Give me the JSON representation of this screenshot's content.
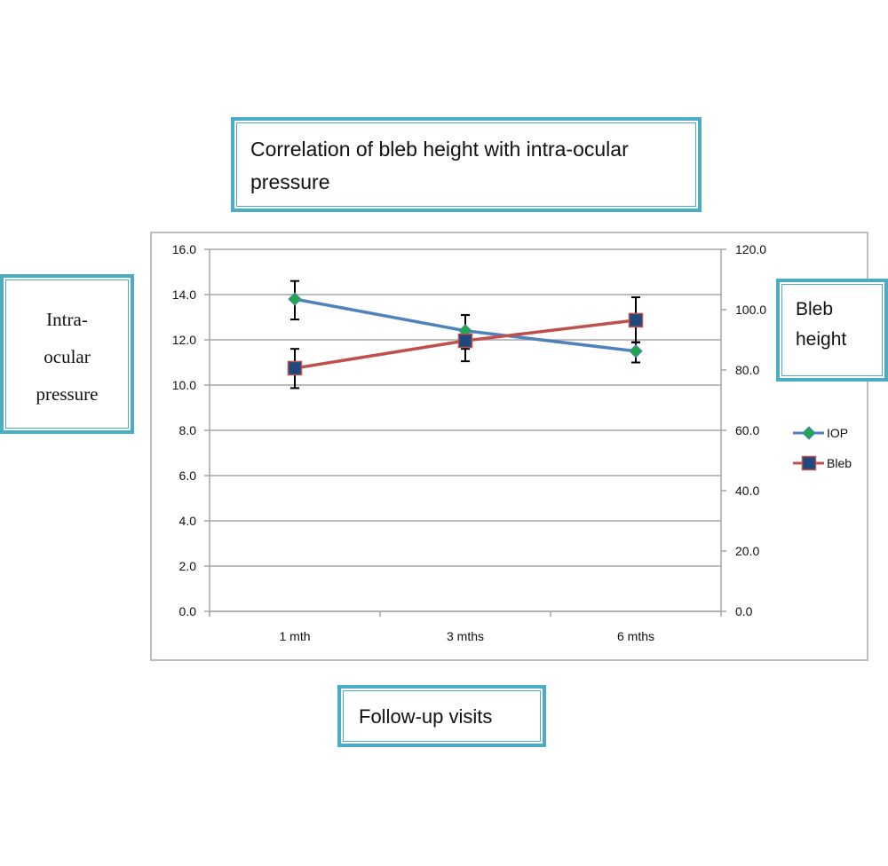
{
  "chart_data": {
    "type": "line",
    "title": "Correlation of bleb height with intra-ocular pressure",
    "xlabel": "Follow-up visits",
    "ylabel": "Intra-ocular pressure",
    "y2label": "Bleb height",
    "categories": [
      "1 mth",
      "3 mths",
      "6 mths"
    ],
    "ylim": [
      0,
      16
    ],
    "y2lim": [
      0,
      120
    ],
    "yticks": [
      "0.0",
      "2.0",
      "4.0",
      "6.0",
      "8.0",
      "10.0",
      "12.0",
      "14.0",
      "16.0"
    ],
    "y2ticks": [
      "0.0",
      "20.0",
      "40.0",
      "60.0",
      "80.0",
      "100.0",
      "120.0"
    ],
    "grid": true,
    "legend_position": "right",
    "series": [
      {
        "name": "IOP",
        "axis": "left",
        "values": [
          13.8,
          12.4,
          11.5
        ],
        "error_low": [
          12.9,
          11.6,
          11.0
        ],
        "error_high": [
          14.6,
          13.1,
          11.9
        ],
        "line_color": "#4f81bd",
        "marker": "diamond",
        "marker_color": "#1fa84a"
      },
      {
        "name": "Bleb",
        "axis": "right",
        "values": [
          80.6,
          89.7,
          96.5
        ],
        "error_low": [
          74.0,
          82.9,
          89.1
        ],
        "error_high": [
          87.0,
          98.2,
          104.1
        ],
        "line_color": "#c0504d",
        "marker": "square",
        "marker_color": "#1f497d"
      }
    ]
  },
  "labels": {
    "title_lines": [
      "Correlation of bleb height with intra-ocular",
      "pressure"
    ],
    "ylabel_lines": [
      "Intra-",
      "ocular",
      "pressure"
    ],
    "y2label_lines": [
      "Bleb",
      "height"
    ],
    "xlabel": "Follow-up visits"
  },
  "colors": {
    "box_border": "#4bacc6",
    "grid": "#a6a6a6"
  }
}
